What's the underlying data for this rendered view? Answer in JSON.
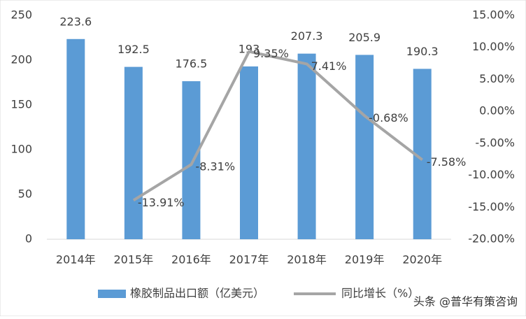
{
  "chart_data": {
    "type": "combo",
    "categories": [
      "2014年",
      "2015年",
      "2016年",
      "2017年",
      "2018年",
      "2019年",
      "2020年"
    ],
    "series": [
      {
        "name": "橡胶制品出口额（亿美元）",
        "type": "bar",
        "color": "#5b9bd5",
        "values": [
          223.6,
          192.5,
          176.5,
          193,
          207.3,
          205.9,
          190.3
        ]
      },
      {
        "name": "同比增长（%）",
        "type": "line",
        "axis": "y2",
        "color": "#a5a5a5",
        "values": [
          null,
          -13.91,
          -8.31,
          9.35,
          7.41,
          -0.68,
          -7.58
        ],
        "value_labels": [
          null,
          "-13.91%",
          "-8.31%",
          "9.35%",
          "7.41%",
          "-0.68%",
          "-7.58%"
        ]
      }
    ],
    "ylim": [
      0,
      250
    ],
    "yticks": [
      0,
      50,
      100,
      150,
      200,
      250
    ],
    "y2lim": [
      -20,
      15
    ],
    "y2ticks": [
      {
        "value": -20,
        "label": "-20.00%"
      },
      {
        "value": -15,
        "label": "-15.00%"
      },
      {
        "value": -10,
        "label": "-10.00%"
      },
      {
        "value": -5,
        "label": "-5.00%"
      },
      {
        "value": 0,
        "label": "0.00%"
      },
      {
        "value": 5,
        "label": "5.00%"
      },
      {
        "value": 10,
        "label": "10.00%"
      },
      {
        "value": 15,
        "label": "15.00%"
      }
    ],
    "legend": "bottom",
    "watermark": "头条 @普华有策咨询"
  }
}
